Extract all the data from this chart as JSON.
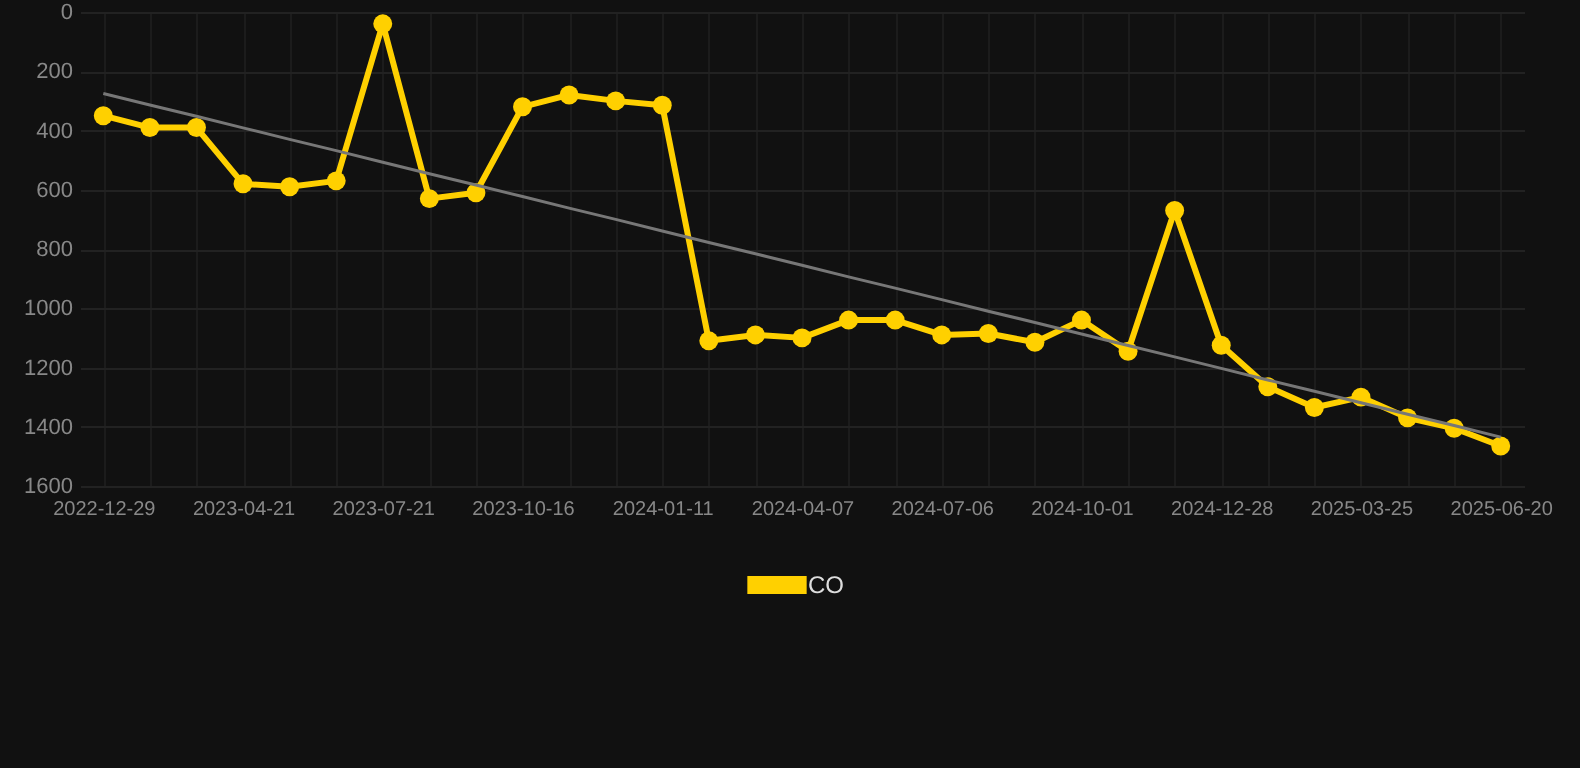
{
  "chart_data": {
    "type": "line",
    "categories": [
      "2022-12-29",
      null,
      null,
      "2023-04-21",
      null,
      null,
      "2023-07-21",
      null,
      null,
      "2023-10-16",
      null,
      null,
      "2024-01-11",
      null,
      null,
      "2024-04-07",
      null,
      null,
      "2024-07-06",
      null,
      null,
      "2024-10-01",
      null,
      null,
      "2024-12-28",
      null,
      null,
      "2025-03-25",
      null,
      null,
      "2025-06-20"
    ],
    "series": [
      {
        "name": "CO",
        "color": "#ffd000",
        "values": [
          350,
          390,
          390,
          580,
          590,
          570,
          40,
          630,
          610,
          320,
          280,
          300,
          315,
          1110,
          1090,
          1100,
          1040,
          1040,
          1090,
          1085,
          1115,
          1040,
          1145,
          670,
          1125,
          1265,
          1335,
          1300,
          1370,
          1405,
          1465
        ]
      },
      {
        "type": "line",
        "color": "#777777",
        "marker": "none",
        "values": [
          275,
          314,
          352,
          391,
          430,
          468,
          507,
          546,
          584,
          623,
          662,
          700,
          739,
          778,
          816,
          855,
          894,
          932,
          971,
          1010,
          1048,
          1087,
          1126,
          1164,
          1203,
          1242,
          1280,
          1319,
          1358,
          1396,
          1435
        ]
      }
    ],
    "ylim": [
      1600,
      0
    ],
    "yticks": [
      0,
      200,
      400,
      600,
      800,
      1000,
      1200,
      1400,
      1600
    ],
    "grid": true,
    "legend": "bottom",
    "marker": "circle"
  }
}
